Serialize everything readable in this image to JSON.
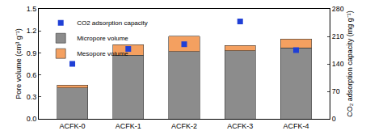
{
  "chart_data": {
    "type": "bar",
    "stacked": true,
    "grid": false,
    "legend": "top-left",
    "categories": [
      "ACFK-0",
      "ACFK-1",
      "ACFK-2",
      "ACFK-3",
      "ACFK-4"
    ],
    "y_label": "Pore volume (cm³ g⁻¹)",
    "y2_label": "CO₂ adsorption capacity (mg g⁻¹)",
    "ylim": [
      0,
      1.5
    ],
    "yticks": [
      {
        "value": 0,
        "label": "0.0"
      },
      0.3,
      0.6,
      0.9,
      1.2,
      1.5
    ],
    "y2lim": [
      0,
      280
    ],
    "y2ticks": [
      0,
      70,
      140,
      210,
      280
    ],
    "series": [
      {
        "name": "Micropore volume",
        "type": "bar",
        "color": "#8c8c8c",
        "values": [
          0.42,
          0.87,
          0.92,
          0.93,
          0.97
        ]
      },
      {
        "name": "Mesopore volume",
        "type": "bar",
        "color": "#f4a060",
        "values": [
          0.04,
          0.14,
          0.21,
          0.07,
          0.12
        ]
      },
      {
        "name": "CO2 adsorption capacity",
        "type": "scatter",
        "marker": "square",
        "color": "#1f3fd6",
        "axis": "y2",
        "values": [
          140,
          178,
          190,
          248,
          175
        ]
      }
    ]
  }
}
